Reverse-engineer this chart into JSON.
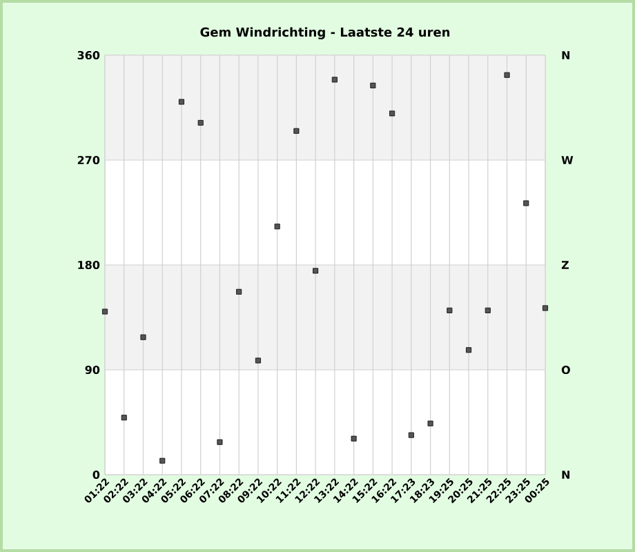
{
  "chart_data": {
    "type": "scatter",
    "title": "Gem Windrichting - Laatste 24 uren",
    "categories": [
      "01:22",
      "02:22",
      "03:22",
      "04:22",
      "05:22",
      "06:22",
      "07:22",
      "08:22",
      "09:22",
      "10:22",
      "11:22",
      "12:22",
      "13:22",
      "14:22",
      "15:22",
      "16:22",
      "17:23",
      "18:23",
      "19:25",
      "20:25",
      "21:25",
      "22:25",
      "23:25",
      "00:25"
    ],
    "series": [
      {
        "color": "#555555",
        "values": [
          140,
          49,
          118,
          12,
          320,
          302,
          28,
          157,
          98,
          213,
          295,
          175,
          339,
          31,
          334,
          310,
          34,
          44,
          141,
          107,
          141,
          343,
          233,
          143
        ]
      }
    ],
    "marker": "square",
    "ylim": [
      0,
      360
    ],
    "yticks": [
      0,
      90,
      180,
      270,
      360
    ],
    "annotations": [
      "N",
      "O",
      "Z",
      "W",
      "N"
    ],
    "bands": [
      {
        "axis": "y",
        "from": 90,
        "to": 180,
        "color": "#f2f2f2"
      },
      {
        "axis": "y",
        "from": 270,
        "to": 360,
        "color": "#f2f2f2"
      }
    ],
    "grid": true
  }
}
